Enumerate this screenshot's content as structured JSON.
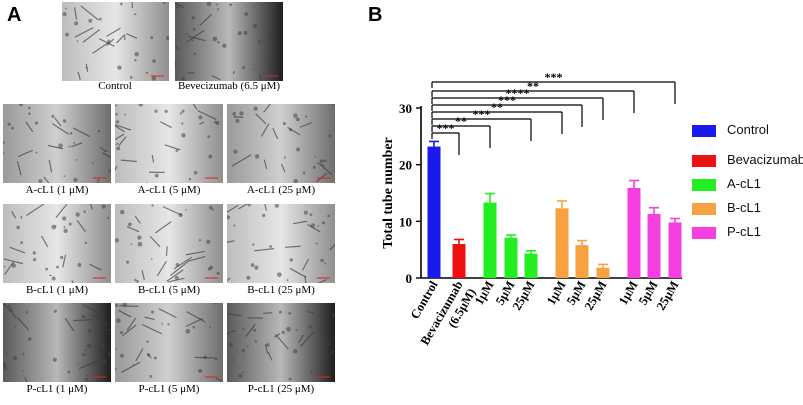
{
  "panel_a": {
    "letter": "A",
    "images": [
      {
        "caption": "Control",
        "tone": "light"
      },
      {
        "caption": "Bevecizumab (6.5 μM)",
        "tone": "dark"
      },
      {
        "caption": "A-cL1 (1 μM)",
        "tone": "mid"
      },
      {
        "caption": "A-cL1 (5 μM)",
        "tone": "light"
      },
      {
        "caption": "A-cL1 (25 μM)",
        "tone": "mid"
      },
      {
        "caption": "B-cL1 (1 μM)",
        "tone": "light"
      },
      {
        "caption": "B-cL1 (5 μM)",
        "tone": "light"
      },
      {
        "caption": "B-cL1 (25 μM)",
        "tone": "light"
      },
      {
        "caption": "P-cL1 (1 μM)",
        "tone": "dark"
      },
      {
        "caption": "P-cL1 (5 μM)",
        "tone": "mid"
      },
      {
        "caption": "P-cL1 (25 μM)",
        "tone": "dark"
      }
    ]
  },
  "panel_b": {
    "letter": "B"
  },
  "chart_data": {
    "type": "bar",
    "title": "",
    "xlabel": "",
    "ylabel": "Total tube number",
    "ylim": [
      0,
      30
    ],
    "yticks": [
      0,
      10,
      20,
      30
    ],
    "categories": [
      "Control",
      "Bevacizumab (6.5μM)",
      "1μM",
      "5μM",
      "25μM",
      "1μM",
      "5μM",
      "25μM",
      "1μM",
      "5μM",
      "25μM"
    ],
    "category_lines": [
      [
        "Control"
      ],
      [
        "Bevacizumab",
        "(6.5μM)"
      ],
      [
        "1μM"
      ],
      [
        "5μM"
      ],
      [
        "25μM"
      ],
      [
        "1μM"
      ],
      [
        "5μM"
      ],
      [
        "25μM"
      ],
      [
        "1μM"
      ],
      [
        "5μM"
      ],
      [
        "25μM"
      ]
    ],
    "values": [
      23.2,
      6.0,
      13.3,
      7.1,
      4.3,
      12.3,
      5.8,
      1.8,
      15.9,
      11.3,
      9.8
    ],
    "errors": [
      0.9,
      0.8,
      1.6,
      0.5,
      0.5,
      1.3,
      0.8,
      0.6,
      1.3,
      1.1,
      0.7
    ],
    "group_colors": [
      "#1a1aee",
      "#ee1111",
      "#22ee22",
      "#f7a140",
      "#f53fe0"
    ],
    "bar_groups": [
      0,
      1,
      2,
      2,
      2,
      3,
      3,
      3,
      4,
      4,
      4
    ],
    "legend": [
      "Control",
      "Bevacizumab",
      "A-cL1",
      "B-cL1",
      "P-cL1"
    ],
    "legend_placement": "right",
    "significance": [
      {
        "from": 0,
        "to": 1,
        "label": "***"
      },
      {
        "from": 0,
        "to": 2,
        "label": "**"
      },
      {
        "from": 0,
        "to": 4,
        "label": "***"
      },
      {
        "from": 0,
        "to": 5,
        "label": "**"
      },
      {
        "from": 0,
        "to": 6,
        "label": "***"
      },
      {
        "from": 0,
        "to": 7,
        "label": "****"
      },
      {
        "from": 0,
        "to": 8,
        "label": "**"
      },
      {
        "from": 0,
        "to": 10,
        "label": "***"
      }
    ]
  }
}
